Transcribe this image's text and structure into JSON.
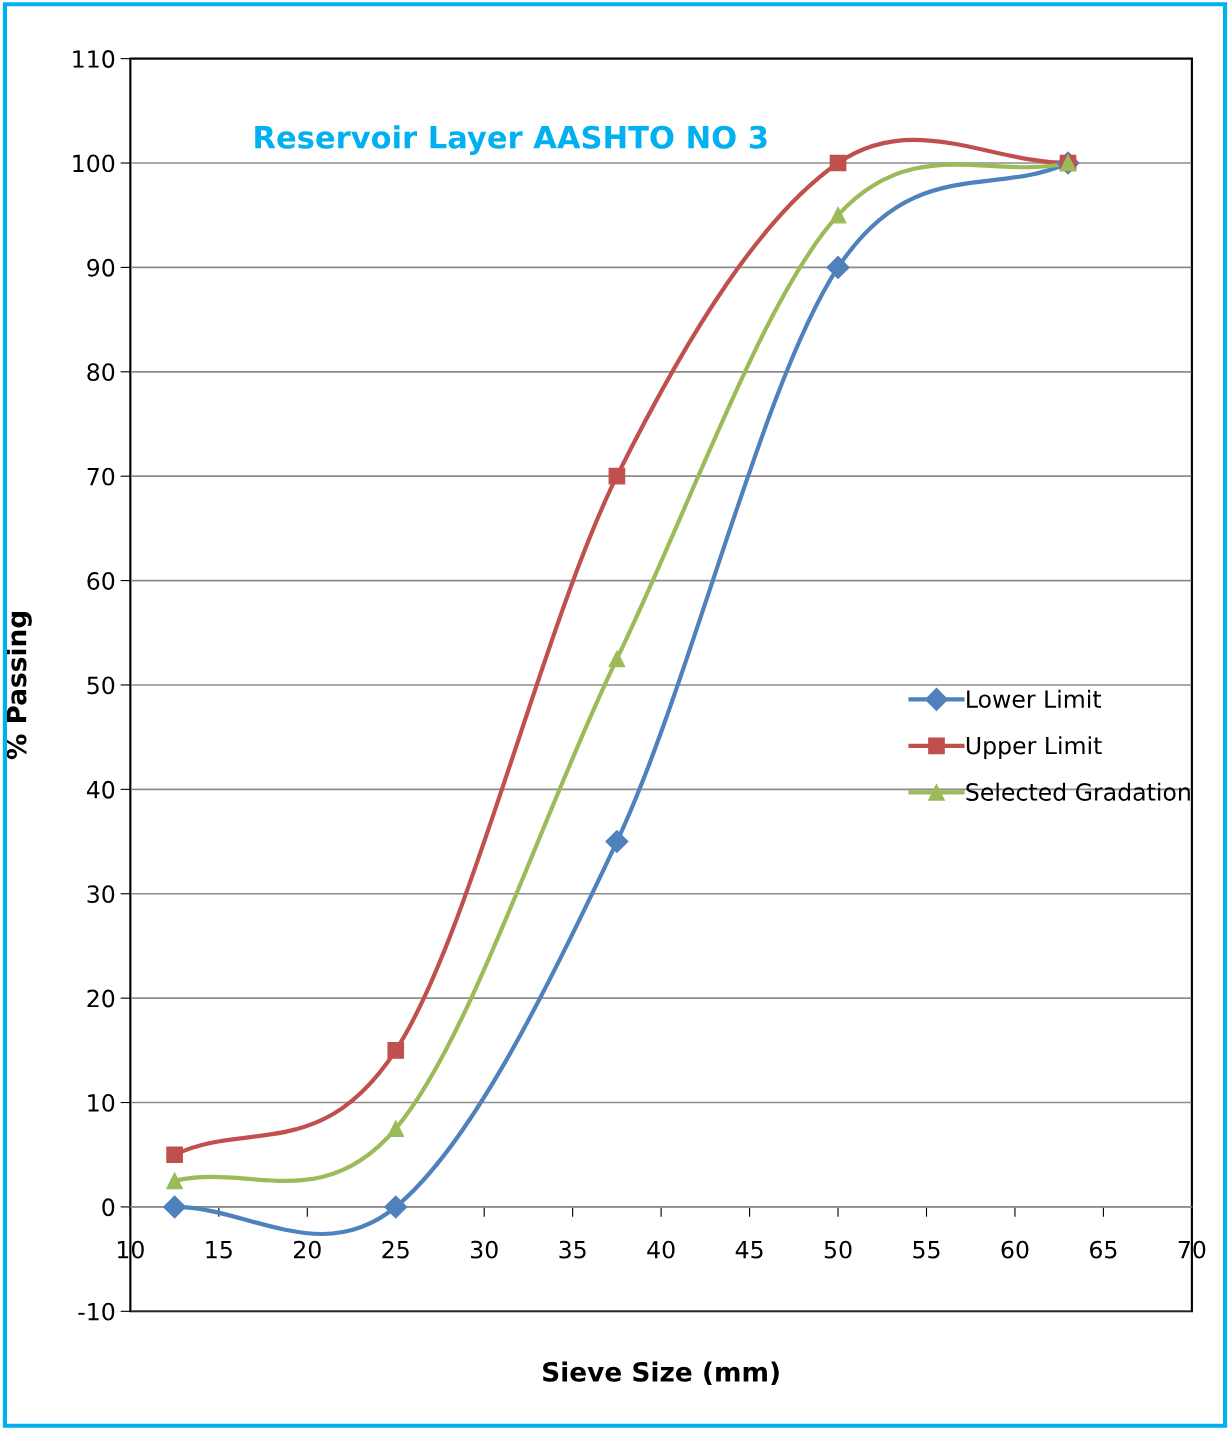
{
  "chart_data": {
    "type": "line",
    "title": "Reservoir Layer AASHTO NO 3",
    "xlabel": "Sieve Size (mm)",
    "ylabel": "% Passing",
    "x": [
      12.5,
      25,
      37.5,
      50,
      63
    ],
    "series": [
      {
        "name": "Lower Limit",
        "color": "#4f81bd",
        "marker": "diamond",
        "values": [
          0,
          0,
          35,
          90,
          100
        ]
      },
      {
        "name": "Upper Limit",
        "color": "#c0504d",
        "marker": "square",
        "values": [
          5,
          15,
          70,
          100,
          100
        ]
      },
      {
        "name": "Selected Gradation",
        "color": "#9bbb59",
        "marker": "triangle",
        "values": [
          2.5,
          7.5,
          52.5,
          95,
          100
        ]
      }
    ],
    "xlim": [
      10,
      70
    ],
    "xticks": [
      10,
      15,
      20,
      25,
      30,
      35,
      40,
      45,
      50,
      55,
      60,
      65,
      70
    ],
    "ylim": [
      -10,
      110
    ],
    "yticks": [
      -10,
      0,
      10,
      20,
      30,
      40,
      50,
      60,
      70,
      80,
      90,
      100,
      110
    ],
    "grid": "y",
    "legend": "right",
    "line_style": "solid"
  }
}
